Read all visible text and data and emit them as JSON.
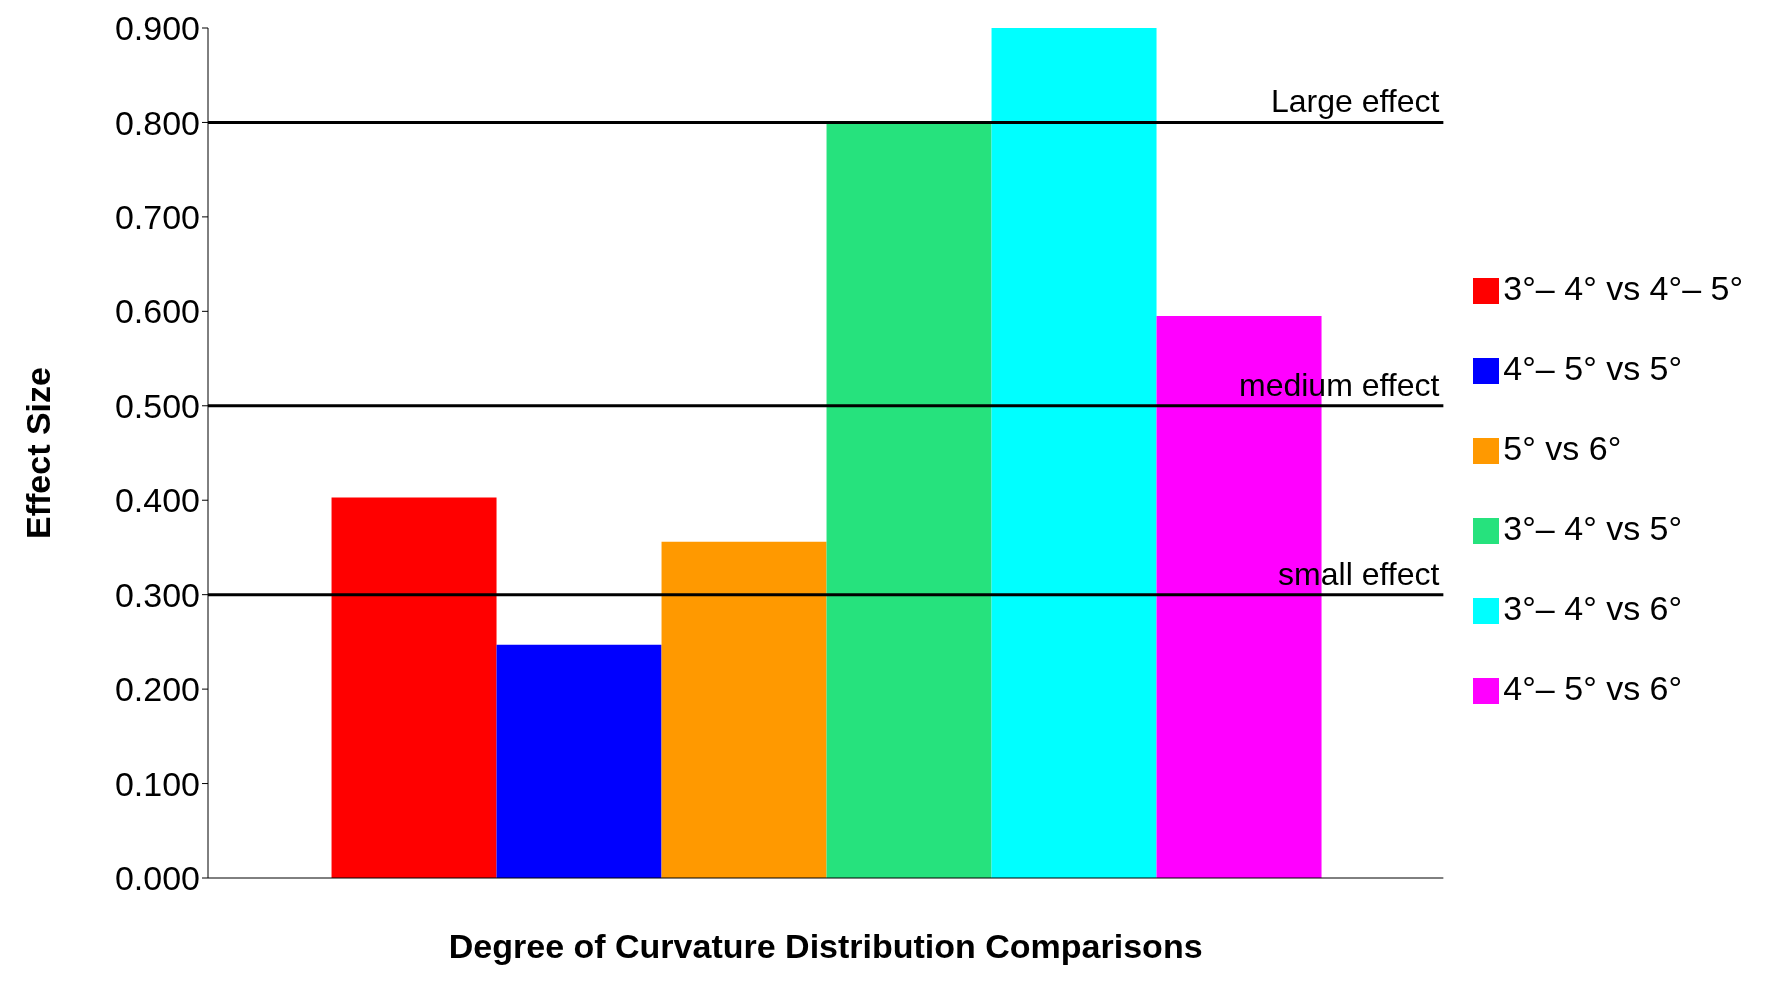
{
  "chart_data": {
    "type": "bar",
    "xlabel": "Degree of Curvature Distribution Comparisons",
    "ylabel": "Effect Size",
    "categories": [
      null
    ],
    "series": [
      {
        "name": "3°– 4° vs 4°– 5°",
        "color": "#ff0000",
        "values": [
          0.403
        ]
      },
      {
        "name": "4°– 5° vs 5°",
        "color": "#0000ff",
        "values": [
          0.247
        ]
      },
      {
        "name": "5° vs 6°",
        "color": "#ff9900",
        "values": [
          0.356
        ]
      },
      {
        "name": "3°– 4° vs 5°",
        "color": "#26e27d",
        "values": [
          0.8
        ]
      },
      {
        "name": "3°– 4° vs 6°",
        "color": "#00ffff",
        "values": [
          0.9
        ]
      },
      {
        "name": "4°– 5° vs 6°",
        "color": "#ff00ff",
        "values": [
          0.595
        ]
      }
    ],
    "ylim": [
      0,
      0.9
    ],
    "yticks": [
      {
        "value": 0,
        "label": "0.000"
      },
      {
        "value": 0.1,
        "label": "0.100"
      },
      {
        "value": 0.2,
        "label": "0.200"
      },
      {
        "value": 0.3,
        "label": "0.300"
      },
      {
        "value": 0.4,
        "label": "0.400"
      },
      {
        "value": 0.5,
        "label": "0.500"
      },
      {
        "value": 0.6,
        "label": "0.600"
      },
      {
        "value": 0.7,
        "label": "0.700"
      },
      {
        "value": 0.8,
        "label": "0.800"
      },
      {
        "value": 0.9,
        "label": "0.900"
      }
    ],
    "ref_lines": [
      {
        "axis": "y",
        "value": 0.8,
        "label": "Large effect",
        "color": "#000000"
      },
      {
        "axis": "y",
        "value": 0.5,
        "label": "medium effect",
        "color": "#000000"
      },
      {
        "axis": "y",
        "value": 0.3,
        "label": "small effect",
        "color": "#000000"
      }
    ],
    "tick_labels": "y",
    "grid": false,
    "legend": "right"
  }
}
